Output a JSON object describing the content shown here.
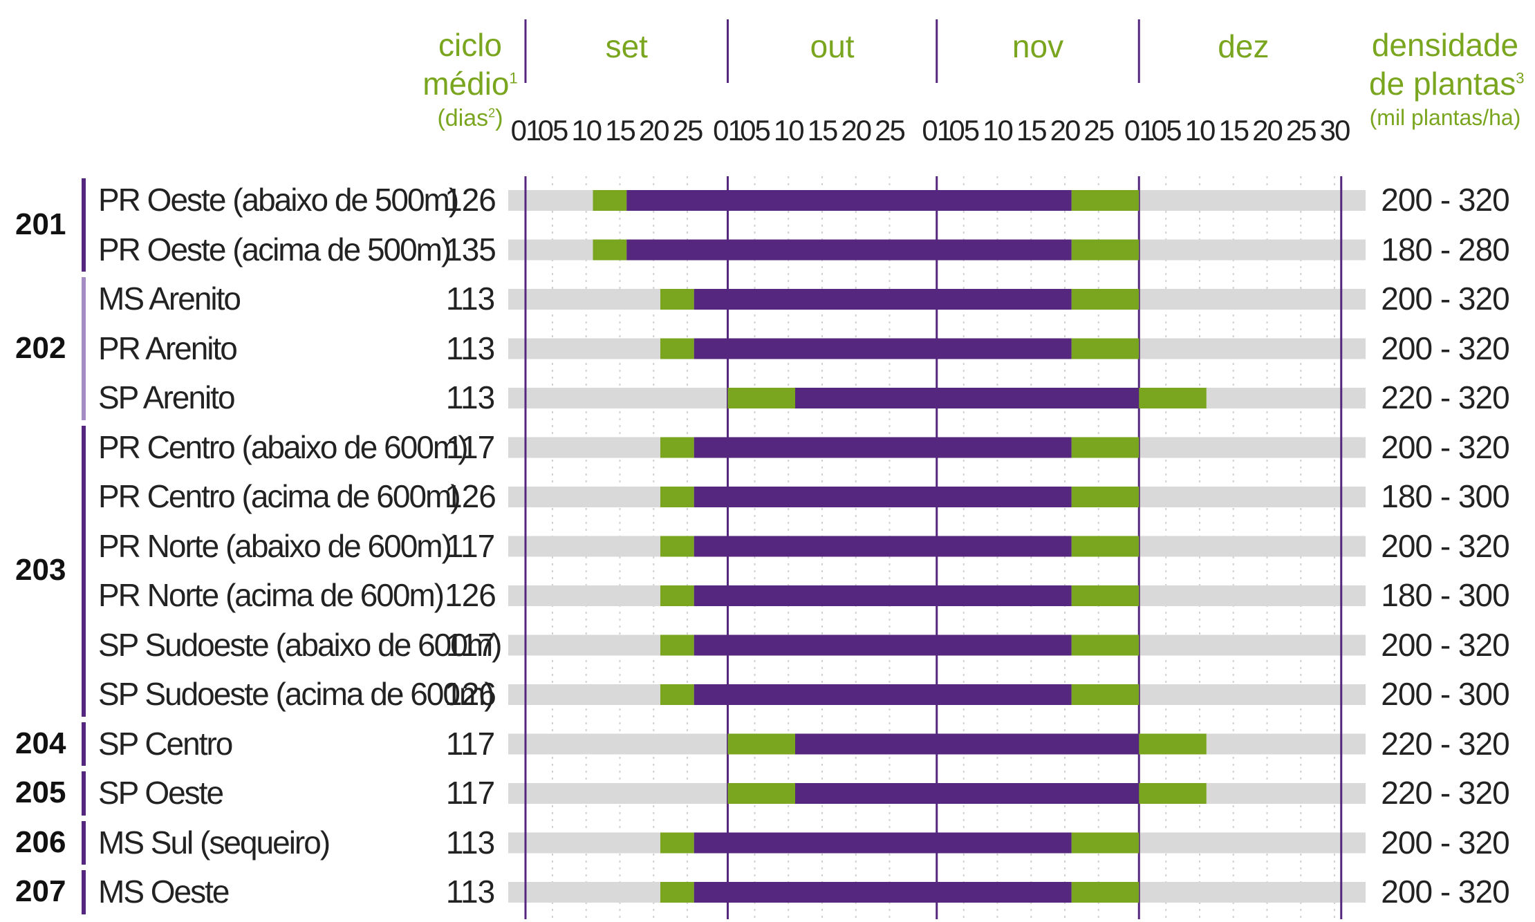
{
  "colors": {
    "base": "#d9d9d9",
    "optimal": "#55277f",
    "tolerable": "#7aa51e",
    "header": "#7aa51e",
    "line": "#55277f"
  },
  "headers": {
    "cycle_l1": "ciclo",
    "cycle_l2": "médio",
    "cycle_sup": "1",
    "cycle_l3": "(dias",
    "cycle_l3_sup": "2",
    "cycle_l3_end": ")",
    "density_l1": "densidade",
    "density_l2": "de plantas",
    "density_sup": "3",
    "density_l3": "(mil plantas/ha)"
  },
  "chart_data": {
    "type": "gantt",
    "months": [
      "set",
      "out",
      "nov",
      "dez"
    ],
    "ticks": [
      "01",
      "05",
      "10",
      "15",
      "20",
      "25",
      "01",
      "05",
      "10",
      "15",
      "20",
      "25",
      "01",
      "05",
      "10",
      "15",
      "20",
      "25",
      "01",
      "05",
      "10",
      "15",
      "20",
      "25",
      "30"
    ],
    "groups": [
      {
        "id": "201",
        "rows": [
          0,
          1
        ]
      },
      {
        "id": "202",
        "rows": [
          2,
          3,
          4
        ]
      },
      {
        "id": "203",
        "rows": [
          5,
          6,
          7,
          8,
          9,
          10
        ]
      },
      {
        "id": "204",
        "rows": [
          11
        ]
      },
      {
        "id": "205",
        "rows": [
          12
        ]
      },
      {
        "id": "206",
        "rows": [
          13
        ]
      },
      {
        "id": "207",
        "rows": [
          14
        ]
      }
    ],
    "rows": [
      {
        "region": "PR Oeste (abaixo de 500m)",
        "cycle": "126",
        "density": "200 - 320",
        "tol_start": 10,
        "opt_start": 15,
        "opt_end": 81,
        "tol_end": 91
      },
      {
        "region": "PR Oeste (acima de 500m)",
        "cycle": "135",
        "density": "180 - 280",
        "tol_start": 10,
        "opt_start": 15,
        "opt_end": 81,
        "tol_end": 91
      },
      {
        "region": "MS Arenito",
        "cycle": "113",
        "density": "200 - 320",
        "tol_start": 20,
        "opt_start": 25,
        "opt_end": 81,
        "tol_end": 91
      },
      {
        "region": "PR Arenito",
        "cycle": "113",
        "density": "200 - 320",
        "tol_start": 20,
        "opt_start": 25,
        "opt_end": 81,
        "tol_end": 91
      },
      {
        "region": "SP Arenito",
        "cycle": "113",
        "density": "220 - 320",
        "tol_start": 30,
        "opt_start": 40,
        "opt_end": 91,
        "tol_end": 101
      },
      {
        "region": "PR Centro (abaixo de 600m)",
        "cycle": "117",
        "density": "200 - 320",
        "tol_start": 20,
        "opt_start": 25,
        "opt_end": 81,
        "tol_end": 91
      },
      {
        "region": "PR Centro (acima de 600m)",
        "cycle": "126",
        "density": "180 - 300",
        "tol_start": 20,
        "opt_start": 25,
        "opt_end": 81,
        "tol_end": 91
      },
      {
        "region": "PR Norte (abaixo de 600m)",
        "cycle": "117",
        "density": "200 - 320",
        "tol_start": 20,
        "opt_start": 25,
        "opt_end": 81,
        "tol_end": 91
      },
      {
        "region": "PR Norte (acima de 600m)",
        "cycle": "126",
        "density": "180 - 300",
        "tol_start": 20,
        "opt_start": 25,
        "opt_end": 81,
        "tol_end": 91
      },
      {
        "region": "SP Sudoeste (abaixo de 600m)",
        "cycle": "117",
        "density": "200 - 320",
        "tol_start": 20,
        "opt_start": 25,
        "opt_end": 81,
        "tol_end": 91
      },
      {
        "region": "SP Sudoeste (acima de 600m)",
        "cycle": "126",
        "density": "200 - 300",
        "tol_start": 20,
        "opt_start": 25,
        "opt_end": 81,
        "tol_end": 91
      },
      {
        "region": "SP Centro",
        "cycle": "117",
        "density": "220 - 320",
        "tol_start": 30,
        "opt_start": 40,
        "opt_end": 91,
        "tol_end": 101
      },
      {
        "region": "SP Oeste",
        "cycle": "117",
        "density": "220 - 320",
        "tol_start": 30,
        "opt_start": 40,
        "opt_end": 91,
        "tol_end": 101
      },
      {
        "region": "MS Sul (sequeiro)",
        "cycle": "113",
        "density": "200 - 320",
        "tol_start": 20,
        "opt_start": 25,
        "opt_end": 81,
        "tol_end": 91
      },
      {
        "region": "MS Oeste",
        "cycle": "113",
        "density": "200 - 320",
        "tol_start": 20,
        "opt_start": 25,
        "opt_end": 81,
        "tol_end": 91
      }
    ]
  }
}
